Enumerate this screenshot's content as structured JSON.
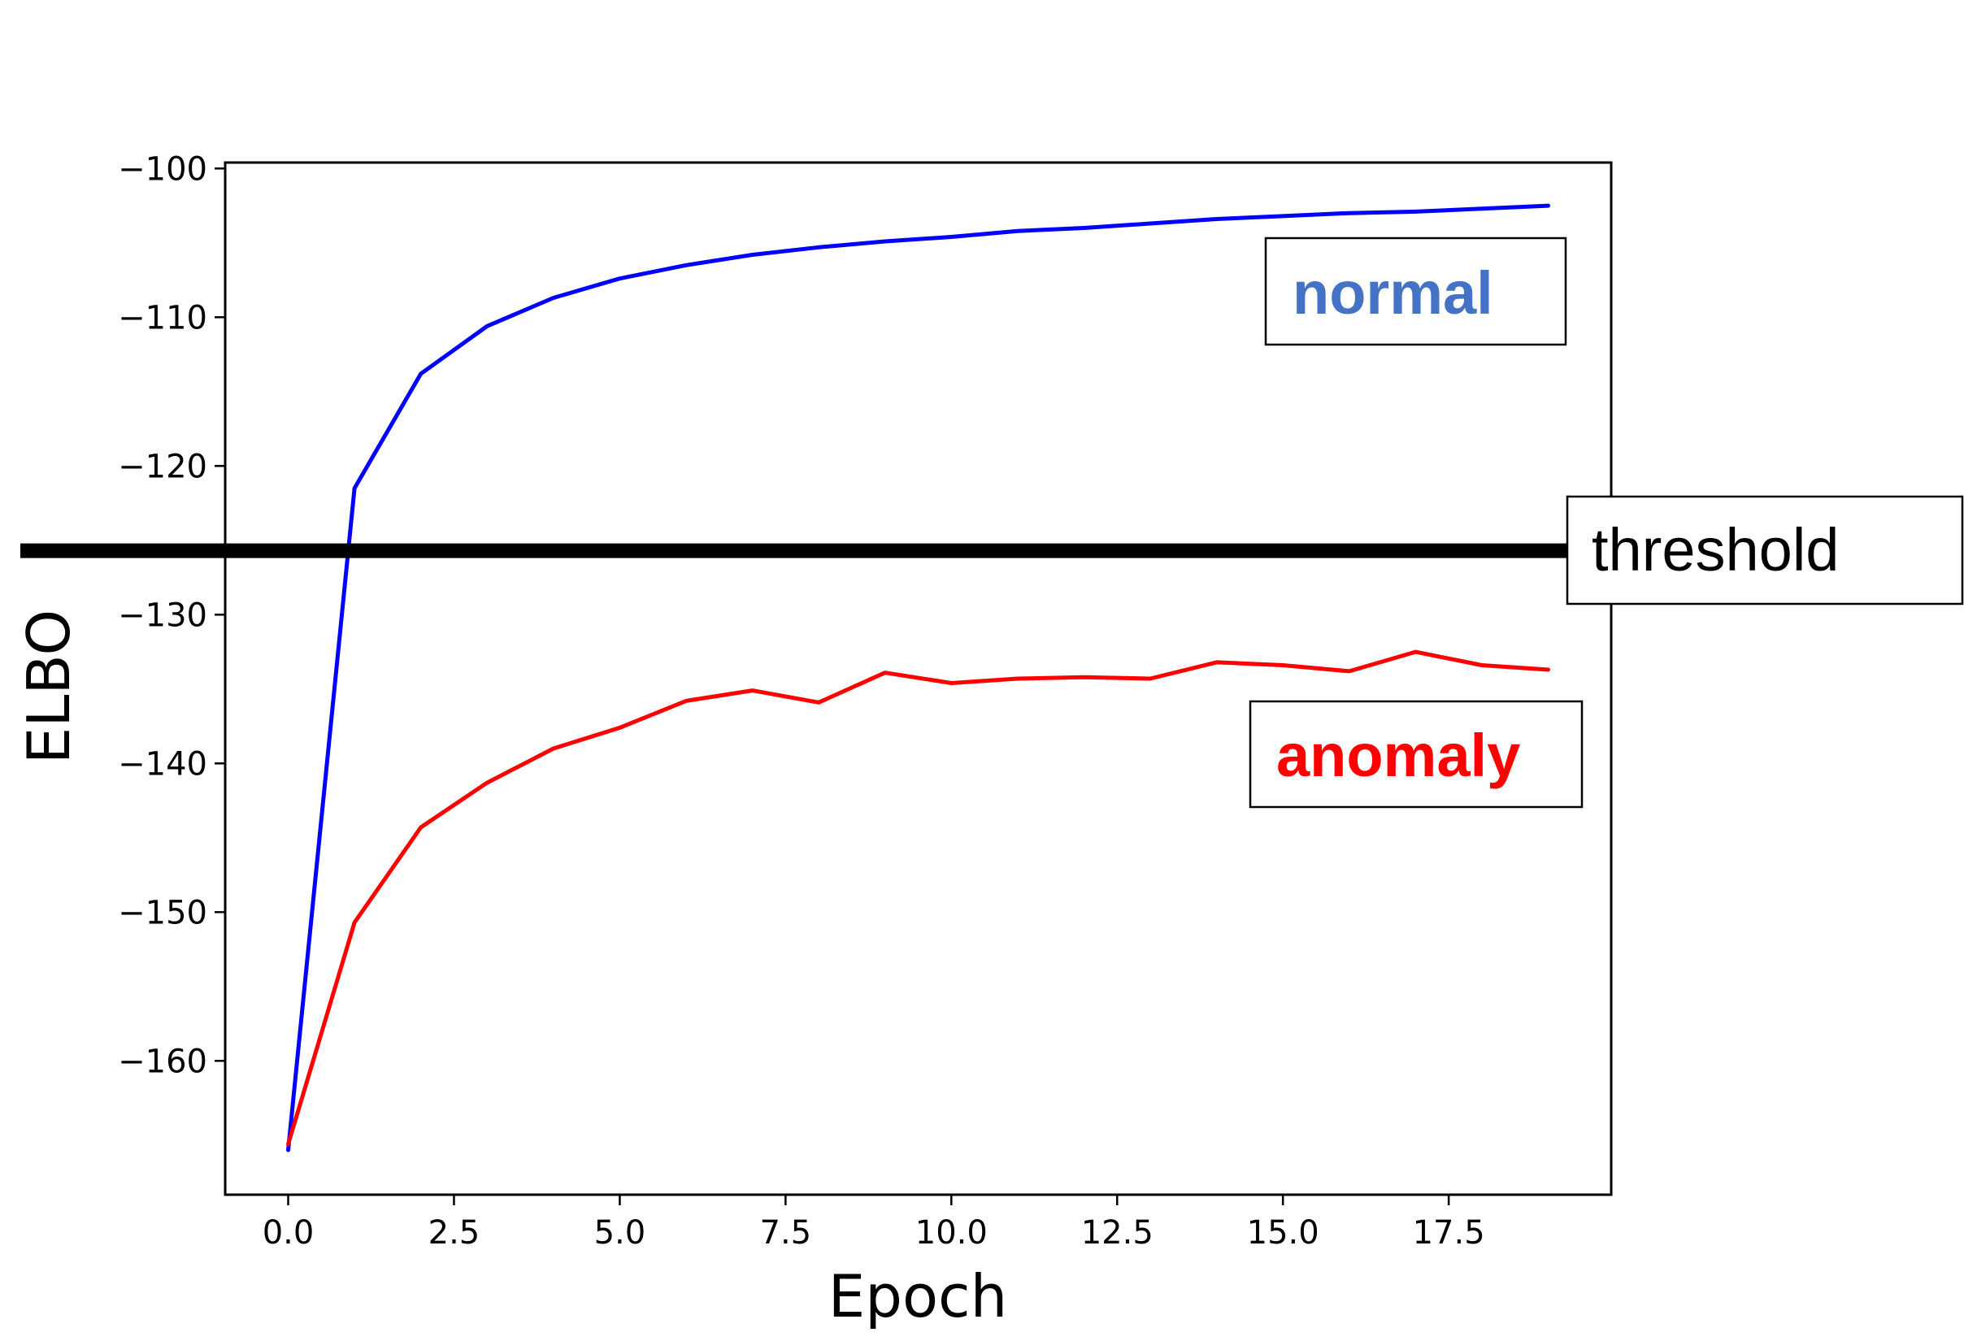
{
  "chart_data": {
    "type": "line",
    "xlabel": "Epoch",
    "ylabel": "ELBO",
    "xlim": [
      -0.95,
      19.95
    ],
    "ylim": [
      -169.0,
      -99.6
    ],
    "xticks": [
      0.0,
      2.5,
      5.0,
      7.5,
      10.0,
      12.5,
      15.0,
      17.5
    ],
    "xtick_labels": [
      "0.0",
      "2.5",
      "5.0",
      "7.5",
      "10.0",
      "12.5",
      "15.0",
      "17.5"
    ],
    "yticks": [
      -100,
      -110,
      -120,
      -130,
      -140,
      -150,
      -160
    ],
    "ytick_labels": [
      "−100",
      "−110",
      "−120",
      "−130",
      "−140",
      "−150",
      "−160"
    ],
    "grid": false,
    "x": [
      0,
      1,
      2,
      3,
      4,
      5,
      6,
      7,
      8,
      9,
      10,
      11,
      12,
      13,
      14,
      15,
      16,
      17,
      18,
      19
    ],
    "series": [
      {
        "color": "#0000ff",
        "values": [
          -166.0,
          -121.5,
          -113.8,
          -110.6,
          -108.7,
          -107.4,
          -106.5,
          -105.8,
          -105.3,
          -104.9,
          -104.6,
          -104.2,
          -104.0,
          -103.7,
          -103.4,
          -103.2,
          -103.0,
          -102.9,
          -102.7,
          -102.5
        ]
      },
      {
        "color": "#ff0000",
        "values": [
          -165.6,
          -150.7,
          -144.3,
          -141.3,
          -139.0,
          -137.6,
          -135.8,
          -135.1,
          -135.9,
          -133.9,
          -134.6,
          -134.3,
          -134.2,
          -134.3,
          -133.2,
          -133.4,
          -133.8,
          -132.5,
          -133.4,
          -133.7
        ]
      }
    ],
    "annotations": {
      "normal": {
        "text": "normal",
        "color": "#4472c4"
      },
      "anomaly": {
        "text": "anomaly",
        "color": "#ff0000"
      },
      "threshold": {
        "text": "threshold",
        "color": "#000000",
        "y": -125.7
      }
    }
  }
}
